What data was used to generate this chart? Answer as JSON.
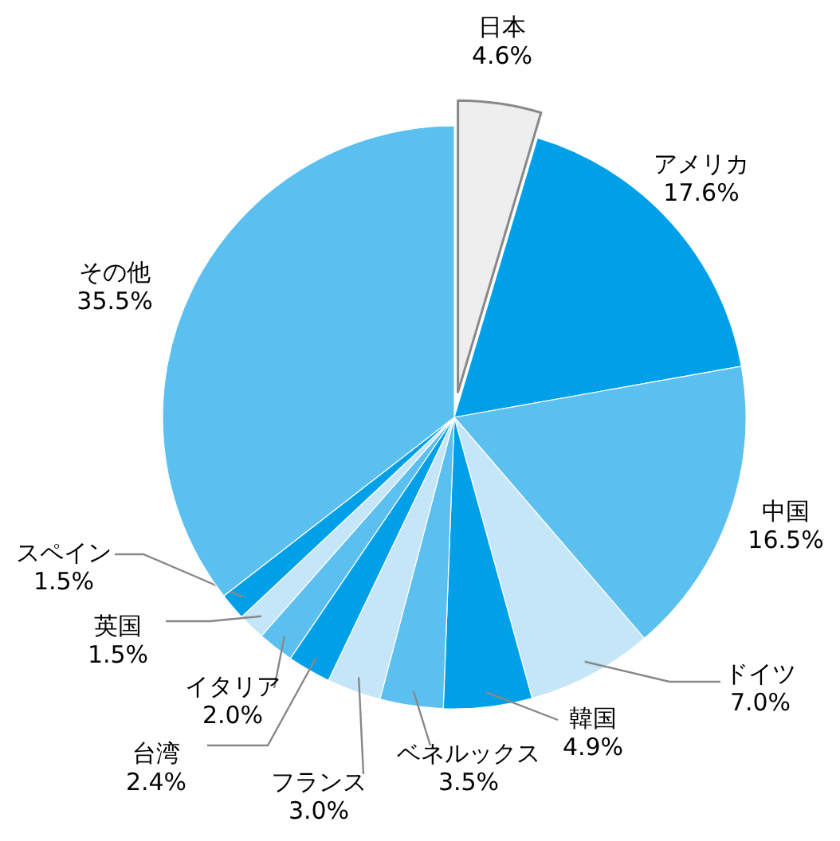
{
  "chart_data": {
    "type": "pie",
    "categories": [
      "日本",
      "アメリカ",
      "中国",
      "ドイツ",
      "韓国",
      "ベネルックス",
      "フランス",
      "台湾",
      "イタリア",
      "英国",
      "スペイン",
      "その他"
    ],
    "values": [
      4.6,
      17.6,
      16.5,
      7.0,
      4.9,
      3.5,
      3.0,
      2.4,
      2.0,
      1.5,
      1.5,
      35.5
    ],
    "value_labels": [
      "4.6%",
      "17.6%",
      "16.5%",
      "7.0%",
      "4.9%",
      "3.5%",
      "3.0%",
      "2.4%",
      "2.0%",
      "1.5%",
      "1.5%",
      "35.5%"
    ],
    "colors": [
      "#eeeeee",
      "#00a0e9",
      "#5bc0f0",
      "#c5e6f8",
      "#00a0e9",
      "#5bc0f0",
      "#c5e6f8",
      "#00a0e9",
      "#5bc0f0",
      "#c5e6f8",
      "#00a0e9",
      "#5bc0f0"
    ]
  }
}
